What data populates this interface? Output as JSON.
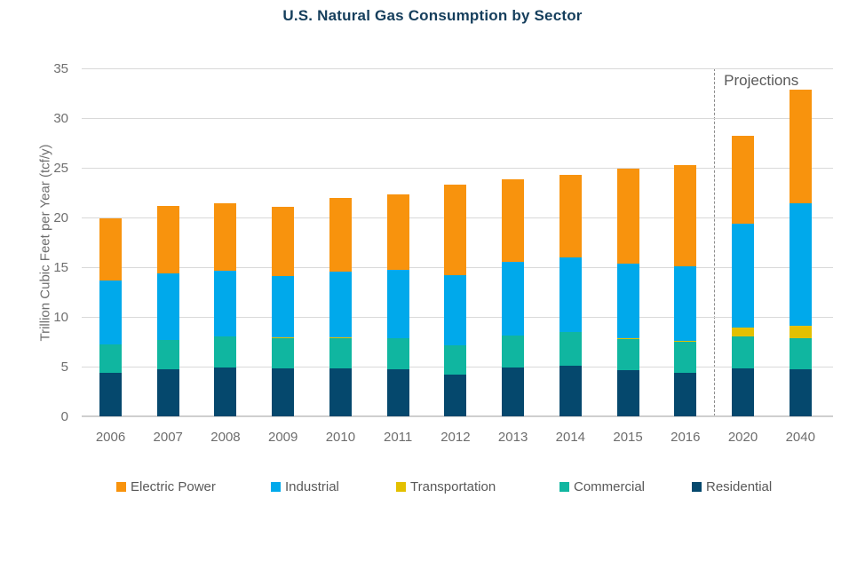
{
  "chart_data": {
    "type": "bar",
    "stacked": true,
    "title": "U.S. Natural Gas Consumption by Sector",
    "xlabel": "",
    "ylabel": "Trillion Cubic Feet per Year (tcf/y)",
    "ylim": [
      0,
      35
    ],
    "yticks": [
      0,
      5,
      10,
      15,
      20,
      25,
      30,
      35
    ],
    "grid": "horizontal-only",
    "legend_position": "bottom",
    "categories": [
      "2006",
      "2007",
      "2008",
      "2009",
      "2010",
      "2011",
      "2012",
      "2013",
      "2014",
      "2015",
      "2016",
      "2020",
      "2040"
    ],
    "series": [
      {
        "name": "Residential",
        "color": "#05486D",
        "values": [
          4.4,
          4.7,
          4.9,
          4.8,
          4.8,
          4.7,
          4.2,
          4.9,
          5.1,
          4.6,
          4.4,
          4.8,
          4.7
        ]
      },
      {
        "name": "Commercial",
        "color": "#10B6A0",
        "values": [
          2.8,
          3.0,
          3.1,
          3.1,
          3.1,
          3.2,
          2.9,
          3.2,
          3.4,
          3.2,
          3.1,
          3.2,
          3.2
        ]
      },
      {
        "name": "Transportation",
        "color": "#E3C000",
        "values": [
          0,
          0,
          0,
          0.05,
          0.05,
          0,
          0,
          0,
          0,
          0.05,
          0.05,
          0.9,
          1.2
        ]
      },
      {
        "name": "Industrial",
        "color": "#00A9EB",
        "values": [
          6.5,
          6.7,
          6.6,
          6.2,
          6.6,
          6.8,
          7.1,
          7.4,
          7.5,
          7.5,
          7.5,
          10.5,
          12.3
        ]
      },
      {
        "name": "Electric Power",
        "color": "#F8930D",
        "values": [
          6.2,
          6.8,
          6.8,
          6.9,
          7.4,
          7.6,
          9.1,
          8.3,
          8.3,
          9.6,
          10.2,
          8.8,
          11.5
        ]
      }
    ],
    "totals": [
      19.9,
      21.2,
      21.4,
      21.1,
      22.0,
      22.3,
      23.3,
      23.8,
      24.3,
      25.0,
      25.2,
      28.2,
      32.9
    ],
    "legend_order": [
      "Electric Power",
      "Industrial",
      "Transportation",
      "Commercial",
      "Residential"
    ],
    "annotations": {
      "projections_label": "Projections",
      "projection_divider_between": [
        "2016",
        "2020"
      ]
    }
  },
  "colors": {
    "title_text": "#153E5C",
    "axis_text": "#6E6E6E",
    "legend_text": "#595959",
    "gridline": "#D9D9D9",
    "projection_divider": "#8C8C8C",
    "background": "#FFFFFF"
  }
}
